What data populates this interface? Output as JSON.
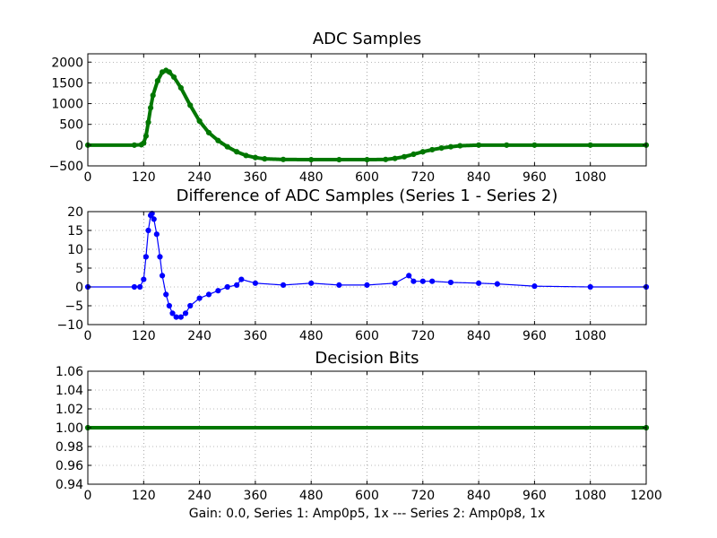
{
  "chart_data": [
    {
      "type": "line",
      "title": "ADC Samples",
      "color": "#007700",
      "marker": "dot",
      "xlim": [
        0,
        1200
      ],
      "ylim": [
        -500,
        2200
      ],
      "xticks": [
        0,
        120,
        240,
        360,
        480,
        600,
        720,
        840,
        960,
        1080
      ],
      "yticks": [
        -500,
        0,
        500,
        1000,
        1500,
        2000
      ],
      "grid": true,
      "series": [
        {
          "name": "ADC Samples",
          "x": [
            0,
            100,
            115,
            120,
            125,
            130,
            135,
            140,
            150,
            160,
            168,
            175,
            185,
            200,
            220,
            240,
            260,
            280,
            300,
            320,
            340,
            360,
            380,
            420,
            480,
            540,
            600,
            640,
            660,
            680,
            700,
            720,
            740,
            760,
            780,
            800,
            840,
            900,
            960,
            1080,
            1200
          ],
          "values": [
            0,
            0,
            10,
            50,
            220,
            550,
            900,
            1200,
            1550,
            1760,
            1800,
            1760,
            1640,
            1380,
            960,
            580,
            300,
            110,
            -40,
            -160,
            -250,
            -300,
            -330,
            -345,
            -350,
            -350,
            -350,
            -345,
            -320,
            -280,
            -220,
            -160,
            -110,
            -70,
            -40,
            -15,
            0,
            0,
            0,
            0,
            0
          ]
        }
      ]
    },
    {
      "type": "scatter",
      "title": "Difference of ADC Samples (Series 1 - Series 2)",
      "color": "#0000ff",
      "marker": "dot",
      "xlim": [
        0,
        1200
      ],
      "ylim": [
        -10,
        20
      ],
      "xticks": [
        0,
        120,
        240,
        360,
        480,
        600,
        720,
        840,
        960,
        1080
      ],
      "yticks": [
        -10,
        -5,
        0,
        5,
        10,
        15,
        20
      ],
      "grid": true,
      "series": [
        {
          "name": "Series 1 - Series 2",
          "x": [
            0,
            100,
            112,
            120,
            125,
            130,
            135,
            138,
            142,
            148,
            155,
            160,
            168,
            175,
            182,
            190,
            200,
            210,
            220,
            240,
            260,
            280,
            300,
            320,
            330,
            360,
            420,
            480,
            540,
            600,
            660,
            690,
            700,
            720,
            740,
            780,
            840,
            880,
            960,
            1080,
            1200
          ],
          "values": [
            0,
            0,
            0,
            2,
            8,
            15,
            19,
            19.5,
            18,
            14,
            8,
            3,
            -2,
            -5,
            -7,
            -8,
            -8,
            -7,
            -5,
            -3,
            -2,
            -1,
            0,
            0.5,
            2,
            1,
            0.5,
            1,
            0.5,
            0.5,
            1,
            3,
            1.5,
            1.5,
            1.5,
            1.2,
            1,
            0.8,
            0.2,
            0,
            0
          ]
        }
      ]
    },
    {
      "type": "line",
      "title": "Decision Bits",
      "color": "#007700",
      "marker": "dot",
      "xlim": [
        0,
        1200
      ],
      "ylim": [
        0.94,
        1.06
      ],
      "xticks": [
        0,
        120,
        240,
        360,
        480,
        600,
        720,
        840,
        960,
        1080,
        1200
      ],
      "yticks": [
        "0.94",
        "0.96",
        "0.98",
        "1.00",
        "1.02",
        "1.04",
        "1.06"
      ],
      "grid": true,
      "xlabel": "Gain: 0.0, Series 1: Amp0p5, 1x --- Series 2: Amp0p8, 1x",
      "series": [
        {
          "name": "Decision Bits",
          "x": [
            0,
            1200
          ],
          "values": [
            1.0,
            1.0
          ]
        }
      ]
    }
  ]
}
